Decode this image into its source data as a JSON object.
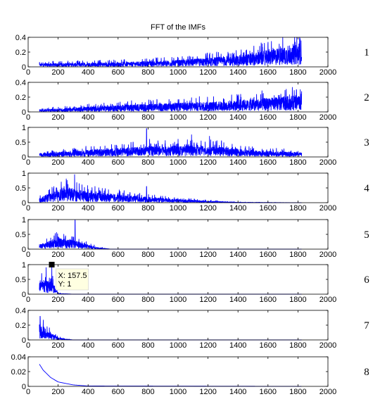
{
  "chart_data": {
    "type": "line",
    "title": "FFT of the IMFs",
    "xlim": [
      0,
      2000
    ],
    "x_ticks": [
      "0",
      "200",
      "400",
      "600",
      "800",
      "1000",
      "1200",
      "1400",
      "1600",
      "1800",
      "2000"
    ],
    "line_color": "#0000ff",
    "grid": false,
    "x_start": 75,
    "panels": [
      {
        "label": "1",
        "ylim": [
          0,
          0.4
        ],
        "y_ticks": [
          "0",
          "0.2",
          "0.4"
        ],
        "x_end": 1825,
        "envelope": [
          [
            75,
            0.03
          ],
          [
            600,
            0.04
          ],
          [
            1000,
            0.06
          ],
          [
            1400,
            0.1
          ],
          [
            1600,
            0.15
          ],
          [
            1800,
            0.2
          ],
          [
            1825,
            0.25
          ]
        ],
        "peaks": [
          [
            1700,
            0.2
          ],
          [
            1760,
            0.25
          ],
          [
            1800,
            0.27
          ],
          [
            1815,
            0.38
          ]
        ]
      },
      {
        "label": "2",
        "ylim": [
          0,
          0.4
        ],
        "y_ticks": [
          "0",
          "0.2",
          "0.4"
        ],
        "x_end": 1825,
        "envelope": [
          [
            75,
            0.02
          ],
          [
            600,
            0.06
          ],
          [
            1000,
            0.08
          ],
          [
            1400,
            0.1
          ],
          [
            1800,
            0.15
          ],
          [
            1825,
            0.12
          ]
        ],
        "peaks": [
          [
            1500,
            0.18
          ],
          [
            1700,
            0.2
          ],
          [
            1790,
            0.3
          ],
          [
            1810,
            0.2
          ]
        ]
      },
      {
        "label": "3",
        "ylim": [
          0,
          1
        ],
        "y_ticks": [
          "0",
          "0.5",
          "1"
        ],
        "x_end": 1825,
        "envelope": [
          [
            75,
            0.08
          ],
          [
            600,
            0.2
          ],
          [
            900,
            0.25
          ],
          [
            1200,
            0.25
          ],
          [
            1500,
            0.15
          ],
          [
            1825,
            0.1
          ]
        ],
        "peaks": [
          [
            700,
            0.5
          ],
          [
            790,
            0.96
          ],
          [
            810,
            0.6
          ],
          [
            1000,
            0.6
          ],
          [
            1090,
            0.75
          ],
          [
            1210,
            0.7
          ],
          [
            1290,
            0.55
          ]
        ]
      },
      {
        "label": "4",
        "ylim": [
          0,
          1
        ],
        "y_ticks": [
          "0",
          "0.5",
          "1"
        ],
        "x_end": 1825,
        "envelope": [
          [
            75,
            0.1
          ],
          [
            250,
            0.35
          ],
          [
            400,
            0.25
          ],
          [
            800,
            0.12
          ],
          [
            1000,
            0.08
          ],
          [
            1200,
            0.04
          ],
          [
            1400,
            0.01
          ],
          [
            1825,
            0.0
          ]
        ],
        "peaks": [
          [
            240,
            0.55
          ],
          [
            280,
            0.45
          ],
          [
            310,
            0.95
          ],
          [
            400,
            0.45
          ],
          [
            790,
            0.55
          ]
        ]
      },
      {
        "label": "5",
        "ylim": [
          0,
          1
        ],
        "y_ticks": [
          "0",
          "0.5",
          "1"
        ],
        "x_end": 1825,
        "envelope": [
          [
            75,
            0.1
          ],
          [
            200,
            0.25
          ],
          [
            300,
            0.2
          ],
          [
            450,
            0.05
          ],
          [
            550,
            0.0
          ],
          [
            1825,
            0.0
          ]
        ],
        "peaks": [
          [
            250,
            0.45
          ],
          [
            290,
            0.42
          ],
          [
            313,
            0.98
          ]
        ]
      },
      {
        "label": "6",
        "ylim": [
          0,
          1
        ],
        "y_ticks": [
          "0",
          "0.5",
          "1"
        ],
        "x_end": 1825,
        "envelope": [
          [
            75,
            0.3
          ],
          [
            160,
            0.3
          ],
          [
            200,
            0.02
          ],
          [
            300,
            0.0
          ],
          [
            1825,
            0.0
          ]
        ],
        "peaks": [
          [
            90,
            0.7
          ],
          [
            120,
            0.9
          ],
          [
            157.5,
            1.0
          ]
        ]
      },
      {
        "label": "7",
        "ylim": [
          0,
          0.4
        ],
        "y_ticks": [
          "0",
          "0.2",
          "0.4"
        ],
        "x_end": 1825,
        "envelope": [
          [
            75,
            0.15
          ],
          [
            130,
            0.08
          ],
          [
            200,
            0.02
          ],
          [
            300,
            0.0
          ],
          [
            1825,
            0.0
          ]
        ],
        "peaks": [
          [
            80,
            0.32
          ],
          [
            100,
            0.2
          ]
        ]
      },
      {
        "label": "8",
        "ylim": [
          0,
          0.04
        ],
        "y_ticks": [
          "0",
          "0.02",
          "0.04"
        ],
        "x_end": 1825,
        "envelope": [
          [
            75,
            0.03
          ],
          [
            100,
            0.022
          ],
          [
            150,
            0.012
          ],
          [
            200,
            0.006
          ],
          [
            300,
            0.002
          ],
          [
            400,
            0.0005
          ],
          [
            1825,
            0.0
          ]
        ],
        "peaks": [],
        "smooth": true
      }
    ]
  },
  "datatip": {
    "panel_index": 5,
    "x_value": 157.5,
    "y_value": 1,
    "x_label": "X: 157.5",
    "y_label": "Y: 1"
  }
}
